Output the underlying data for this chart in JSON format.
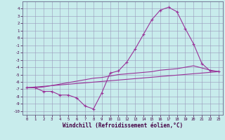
{
  "xlabel": "Windchill (Refroidissement éolien,°C)",
  "xlim": [
    -0.5,
    23.5
  ],
  "ylim": [
    -10.5,
    5.0
  ],
  "xticks": [
    0,
    1,
    2,
    3,
    4,
    5,
    6,
    7,
    8,
    9,
    10,
    11,
    12,
    13,
    14,
    15,
    16,
    17,
    18,
    19,
    20,
    21,
    22,
    23
  ],
  "yticks": [
    -10,
    -9,
    -8,
    -7,
    -6,
    -5,
    -4,
    -3,
    -2,
    -1,
    0,
    1,
    2,
    3,
    4
  ],
  "background_color": "#c8ecec",
  "grid_color": "#9999bb",
  "line_color": "#993399",
  "curve1_x": [
    0,
    1,
    2,
    3,
    4,
    5,
    6,
    7,
    8,
    9,
    10,
    11,
    12,
    13,
    14,
    15,
    16,
    17,
    18,
    19,
    20,
    21,
    22,
    23
  ],
  "curve1_y": [
    -6.8,
    -6.8,
    -7.3,
    -7.3,
    -7.8,
    -7.8,
    -8.2,
    -9.3,
    -9.7,
    -7.5,
    -4.8,
    -4.5,
    -3.3,
    -1.5,
    0.5,
    2.5,
    3.8,
    4.2,
    3.6,
    1.3,
    -0.8,
    -3.5,
    -4.5,
    -4.6
  ],
  "curve2_x": [
    0,
    23
  ],
  "curve2_y": [
    -6.8,
    -4.6
  ],
  "curve3_x": [
    0,
    1,
    2,
    3,
    4,
    5,
    6,
    7,
    8,
    9,
    10,
    11,
    12,
    13,
    14,
    15,
    16,
    17,
    18,
    19,
    20,
    21,
    22,
    23
  ],
  "curve3_y": [
    -6.8,
    -6.8,
    -6.7,
    -6.5,
    -6.3,
    -6.1,
    -5.9,
    -5.7,
    -5.5,
    -5.4,
    -5.2,
    -5.0,
    -4.9,
    -4.8,
    -4.7,
    -4.6,
    -4.4,
    -4.3,
    -4.2,
    -4.0,
    -3.8,
    -4.1,
    -4.4,
    -4.6
  ]
}
